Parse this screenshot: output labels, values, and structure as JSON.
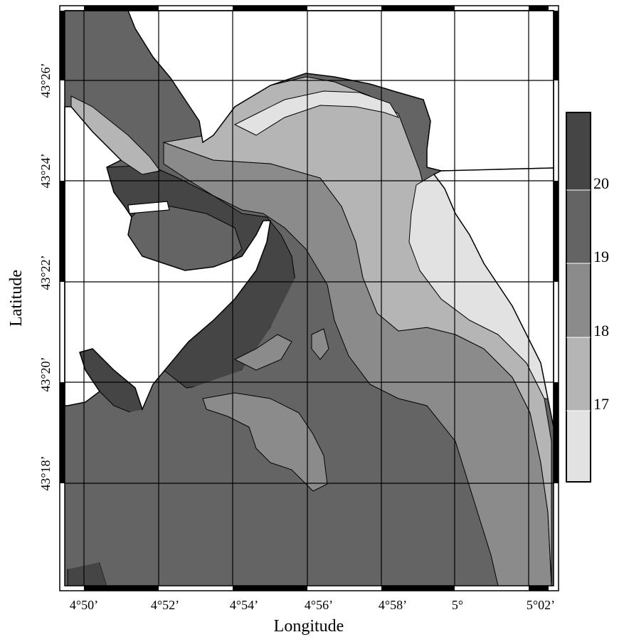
{
  "map": {
    "x_axis_title": "Longitude",
    "y_axis_title": "Latitude",
    "longitude_ticks": [
      "4°50’",
      "4°52’",
      "4°54’",
      "4°56’",
      "4°58’",
      "5°",
      "5°02’"
    ],
    "latitude_ticks": [
      "43°26’",
      "43°24’",
      "43°22’",
      "43°20’",
      "43°18’"
    ],
    "colors": {
      "land": "#ffffff",
      "coast": "#000000",
      "grid": "#000000"
    }
  },
  "legend": {
    "labels": [
      "20",
      "19",
      "18",
      "17"
    ],
    "classes": [
      {
        "color": "#454545"
      },
      {
        "color": "#646464"
      },
      {
        "color": "#8b8b8b"
      },
      {
        "color": "#b5b5b5"
      },
      {
        "color": "#e2e2e2"
      }
    ]
  }
}
